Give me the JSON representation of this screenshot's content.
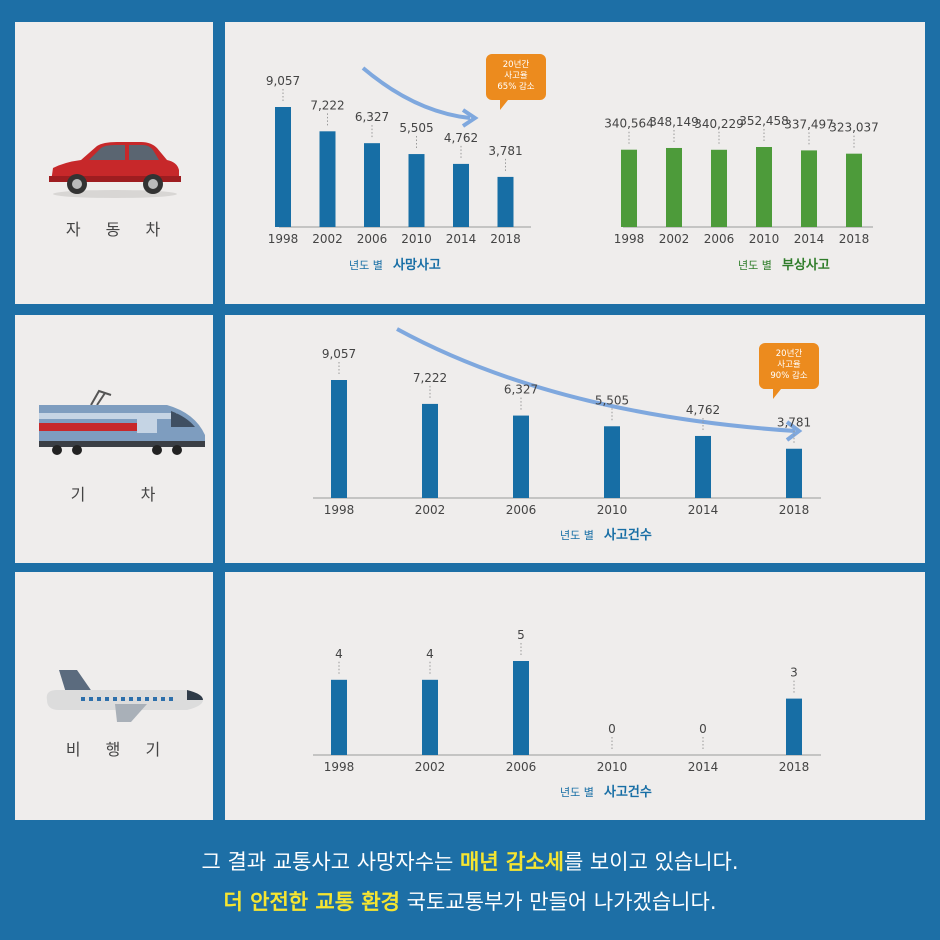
{
  "rows": [
    {
      "label": "자 동 차",
      "icon": "car-icon"
    },
    {
      "label": "기   차",
      "icon": "train-icon"
    },
    {
      "label": "비 행 기",
      "icon": "airplane-icon"
    }
  ],
  "colors": {
    "blue_bar": "#176ea5",
    "green_bar": "#4d9b3a",
    "callout": "#ec8b1e",
    "arrow": "#7fa8de",
    "highlight": "#f5e531"
  },
  "chart_data": [
    {
      "type": "bar",
      "categories": [
        "1998",
        "2002",
        "2006",
        "2010",
        "2014",
        "2018"
      ],
      "values": [
        9057,
        7222,
        6327,
        5505,
        4762,
        3781
      ],
      "value_labels": [
        "9,057",
        "7,222",
        "6,327",
        "5,505",
        "4,762",
        "3,781"
      ],
      "title_prefix": "년도 별",
      "title": "사망사고",
      "callout": [
        "20년간",
        "사고율",
        "65% 감소"
      ],
      "ylim": [
        0,
        10000
      ],
      "grid": false
    },
    {
      "type": "bar",
      "categories": [
        "1998",
        "2002",
        "2006",
        "2010",
        "2014",
        "2018"
      ],
      "values": [
        340564,
        348149,
        340229,
        352458,
        337497,
        323037
      ],
      "value_labels": [
        "340,564",
        "348,149",
        "340,229",
        "352,458",
        "337,497",
        "323,037"
      ],
      "title_prefix": "년도 별",
      "title": "부상사고",
      "ylim": [
        0,
        400000
      ],
      "grid": false
    },
    {
      "type": "bar",
      "categories": [
        "1998",
        "2002",
        "2006",
        "2010",
        "2014",
        "2018"
      ],
      "values": [
        9057,
        7222,
        6327,
        5505,
        4762,
        3781
      ],
      "value_labels": [
        "9,057",
        "7,222",
        "6,327",
        "5,505",
        "4,762",
        "3,781"
      ],
      "title_prefix": "년도 별",
      "title": "사고건수",
      "callout": [
        "20년간",
        "사고율",
        "90% 감소"
      ],
      "grid": false
    },
    {
      "type": "bar",
      "categories": [
        "1998",
        "2002",
        "2006",
        "2010",
        "2014",
        "2018"
      ],
      "values": [
        4,
        4,
        5,
        0,
        0,
        3
      ],
      "value_labels": [
        "4",
        "4",
        "5",
        "0",
        "0",
        "3"
      ],
      "title_prefix": "년도 별",
      "title": "사고건수",
      "ylim": [
        0,
        5
      ],
      "grid": false
    }
  ],
  "footer": {
    "line1": {
      "pre": "그 결과 교통사고 사망자수는 ",
      "hl": "매년 감소세",
      "post": "를 보이고 있습니다."
    },
    "line2": {
      "hl": "더 안전한 교통 환경",
      "post": " 국토교통부가 만들어 나가겠습니다."
    }
  }
}
